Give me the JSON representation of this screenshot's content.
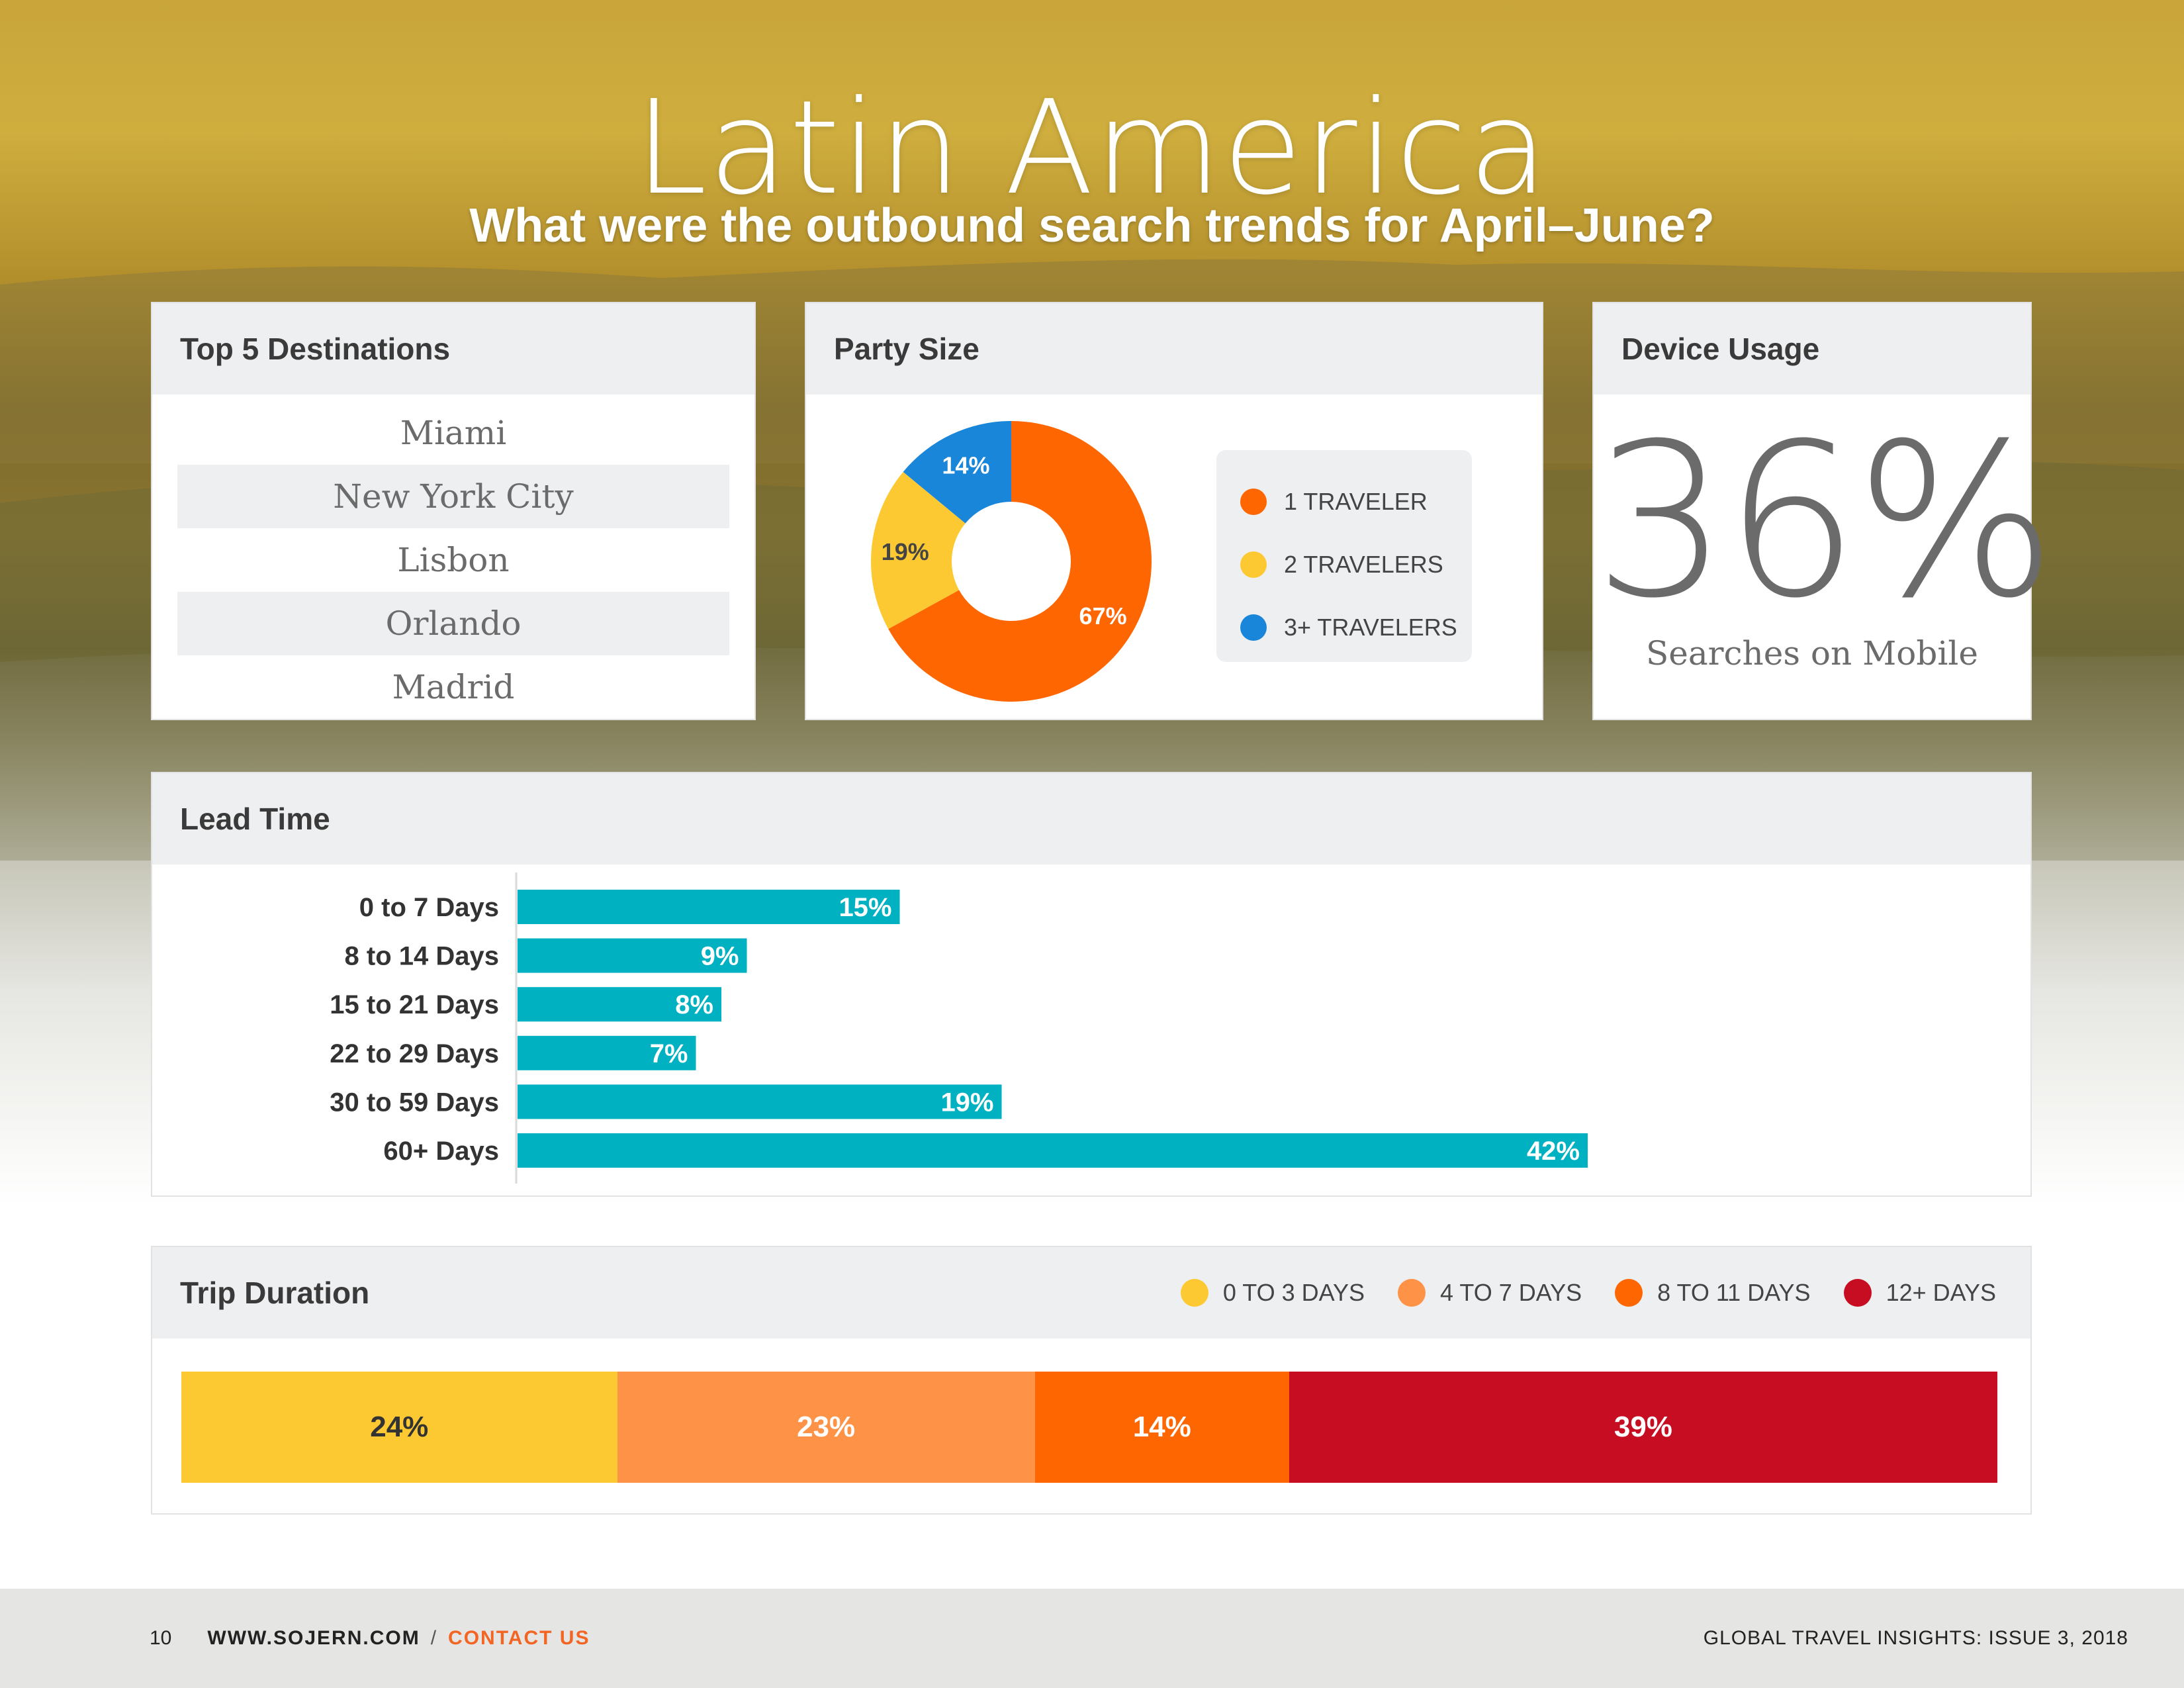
{
  "header": {
    "title": "Latin America",
    "subtitle": "What were the outbound search trends for April–June?"
  },
  "colors": {
    "orange": "#fe6602",
    "yellow": "#fdc932",
    "blue": "#1a86d9",
    "teal": "#00b1c1",
    "light_orange": "#fe9347",
    "red": "#c60d21"
  },
  "destinations": {
    "title": "Top 5 Destinations",
    "items": [
      "Miami",
      "New York City",
      "Lisbon",
      "Orlando",
      "Madrid"
    ]
  },
  "party_size": {
    "title": "Party Size",
    "legend": [
      "1 TRAVELER",
      "2 TRAVELERS",
      "3+ TRAVELERS"
    ]
  },
  "device_usage": {
    "title": "Device Usage",
    "value": "36%",
    "caption": "Searches on Mobile"
  },
  "lead_time": {
    "title": "Lead Time"
  },
  "trip_duration": {
    "title": "Trip Duration",
    "legend": [
      "0 TO 3 DAYS",
      "4 TO 7 DAYS",
      "8 TO 11 DAYS",
      "12+ DAYS"
    ]
  },
  "chart_data": [
    {
      "type": "pie",
      "title": "Party Size",
      "categories": [
        "1 TRAVELER",
        "2 TRAVELERS",
        "3+ TRAVELERS"
      ],
      "values": [
        67,
        19,
        14
      ],
      "labels": [
        "67%",
        "19%",
        "14%"
      ],
      "colors": [
        "#fe6602",
        "#fdc932",
        "#1a86d9"
      ]
    },
    {
      "type": "bar",
      "title": "Lead Time",
      "categories": [
        "0 to 7 Days",
        "8 to 14 Days",
        "15 to 21 Days",
        "22 to 29 Days",
        "30 to 59 Days",
        "60+ Days"
      ],
      "values": [
        15,
        9,
        8,
        7,
        19,
        42
      ],
      "labels": [
        "15%",
        "9%",
        "8%",
        "7%",
        "19%",
        "42%"
      ],
      "color": "#00b1c1"
    },
    {
      "type": "bar",
      "title": "Trip Duration",
      "categories": [
        "0 TO 3 DAYS",
        "4 TO 7 DAYS",
        "8 TO 11 DAYS",
        "12+ DAYS"
      ],
      "values": [
        24,
        23,
        14,
        39
      ],
      "labels": [
        "24%",
        "23%",
        "14%",
        "39%"
      ],
      "colors": [
        "#fdc932",
        "#fe9347",
        "#fe6602",
        "#c60d21"
      ]
    }
  ],
  "footer": {
    "page_number": "10",
    "website": "WWW.SOJERN.COM",
    "separator": "/",
    "contact": "CONTACT US",
    "publication": "GLOBAL TRAVEL INSIGHTS: ISSUE 3, 2018"
  }
}
